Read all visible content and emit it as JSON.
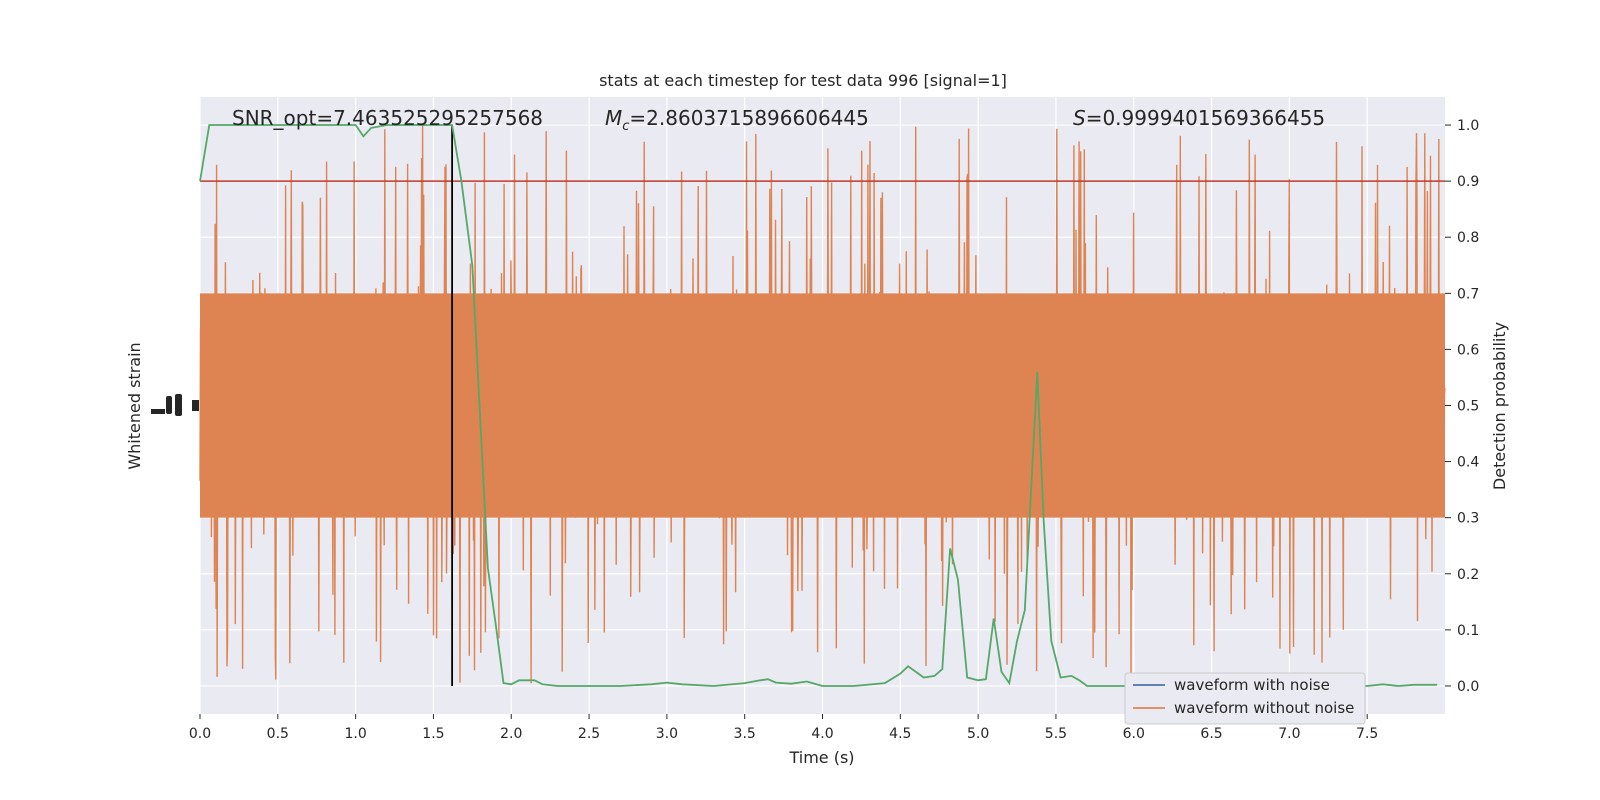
{
  "chart_data": {
    "type": "line",
    "title": "stats at each timestep for test data 996 [signal=1]",
    "xlabel": "Time (s)",
    "ylabel_left": "Whitened strain",
    "ylabel_right": "Detection probability",
    "xlim": [
      0.0,
      8.0
    ],
    "ylim_right": [
      -0.05,
      1.05
    ],
    "xticks": [
      "0.0",
      "0.5",
      "1.0",
      "1.5",
      "2.0",
      "2.5",
      "3.0",
      "3.5",
      "4.0",
      "4.5",
      "5.0",
      "5.5",
      "6.0",
      "6.5",
      "7.0",
      "7.5"
    ],
    "yticks_right": [
      "0.0",
      "0.1",
      "0.2",
      "0.3",
      "0.4",
      "0.5",
      "0.6",
      "0.7",
      "0.8",
      "0.9",
      "1.0"
    ],
    "grid": true,
    "legend_position": "lower-right",
    "annotations": {
      "snr": "SNR_opt=7.463525295257568",
      "mc_symbol": "M",
      "mc_sub": "c",
      "mc_value": "=2.8603715896606445",
      "s_symbol": "S",
      "s_value": "=0.9999401569366455"
    },
    "threshold_line": {
      "y": 0.9,
      "color": "#c0392b"
    },
    "event_time_line": {
      "x": 1.62,
      "color": "#000000"
    },
    "series": [
      {
        "name": "waveform with noise",
        "color": "#4c72b0",
        "kind": "strain",
        "visible": false
      },
      {
        "name": "waveform without noise",
        "color": "#dd8452",
        "kind": "strain",
        "envelope": {
          "center": 0.5,
          "dense_half_width": 0.2,
          "peak_max": 1.0,
          "peak_min": 0.0
        }
      },
      {
        "name": "detection probability",
        "color": "#55a868",
        "kind": "probability",
        "x": [
          0.0,
          0.06,
          0.15,
          0.25,
          0.35,
          0.45,
          0.55,
          0.65,
          0.75,
          0.85,
          0.95,
          1.0,
          1.05,
          1.1,
          1.2,
          1.3,
          1.4,
          1.5,
          1.6,
          1.62,
          1.68,
          1.75,
          1.85,
          1.9,
          1.95,
          2.0,
          2.05,
          2.1,
          2.15,
          2.2,
          2.3,
          2.5,
          2.7,
          2.9,
          3.0,
          3.1,
          3.3,
          3.5,
          3.6,
          3.65,
          3.7,
          3.8,
          3.9,
          4.0,
          4.2,
          4.4,
          4.5,
          4.55,
          4.6,
          4.65,
          4.72,
          4.77,
          4.82,
          4.87,
          4.93,
          5.0,
          5.05,
          5.1,
          5.15,
          5.2,
          5.25,
          5.3,
          5.35,
          5.38,
          5.42,
          5.47,
          5.53,
          5.6,
          5.65,
          5.7,
          5.8,
          6.0,
          6.5,
          7.0,
          7.3,
          7.5,
          7.6,
          7.7,
          7.8,
          7.95
        ],
        "y": [
          0.9,
          1.0,
          1.0,
          1.0,
          1.0,
          1.0,
          1.0,
          1.0,
          1.0,
          1.0,
          1.0,
          1.0,
          0.98,
          0.995,
          1.0,
          1.0,
          1.0,
          1.0,
          1.0,
          1.0,
          0.9,
          0.75,
          0.21,
          0.11,
          0.005,
          0.003,
          0.01,
          0.01,
          0.01,
          0.003,
          0.0,
          0.0,
          0.0,
          0.003,
          0.006,
          0.003,
          0.0,
          0.005,
          0.01,
          0.012,
          0.006,
          0.004,
          0.008,
          0.0,
          0.0,
          0.005,
          0.022,
          0.035,
          0.025,
          0.015,
          0.018,
          0.03,
          0.245,
          0.19,
          0.015,
          0.01,
          0.012,
          0.12,
          0.025,
          0.005,
          0.08,
          0.135,
          0.4,
          0.56,
          0.3,
          0.08,
          0.015,
          0.018,
          0.01,
          0.0,
          0.0,
          0.0,
          0.0,
          0.0,
          0.0,
          0.0,
          0.003,
          0.0,
          0.002,
          0.002
        ]
      }
    ]
  }
}
